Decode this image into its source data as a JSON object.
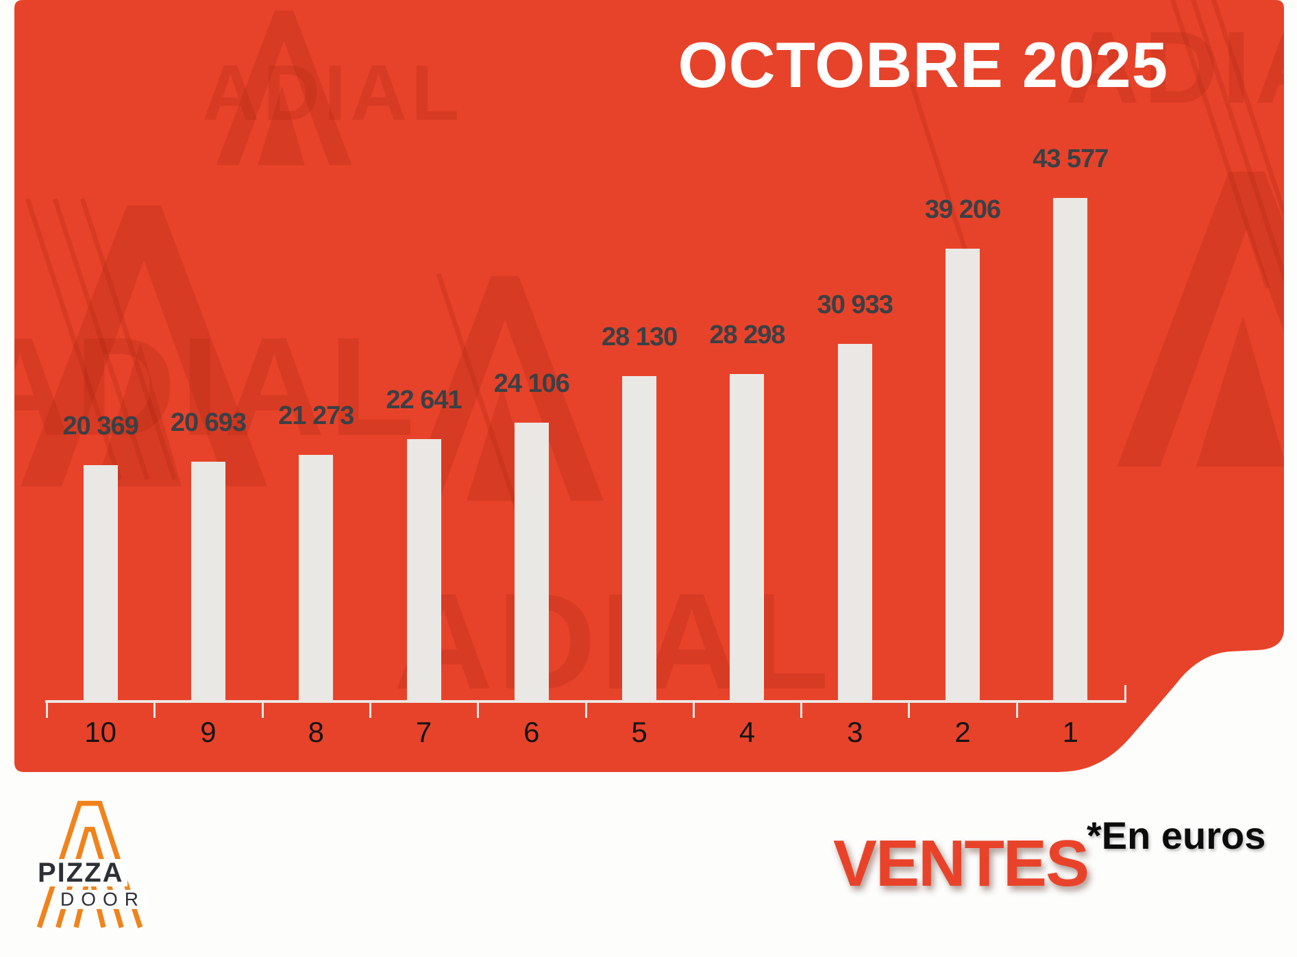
{
  "header": {
    "title": "OCTOBRE 2025"
  },
  "chart_data": {
    "type": "bar",
    "title": "OCTOBRE 2025",
    "categories": [
      "10",
      "9",
      "8",
      "7",
      "6",
      "5",
      "4",
      "3",
      "2",
      "1"
    ],
    "values": [
      20369,
      20693,
      21273,
      22641,
      24106,
      28130,
      28298,
      30933,
      39206,
      43577
    ],
    "value_labels": [
      "20 369",
      "20 693",
      "21 273",
      "22 641",
      "24 106",
      "28 130",
      "28 298",
      "30 933",
      "39 206",
      "43 577"
    ],
    "xlabel": "",
    "ylabel": "",
    "unit": "euros",
    "ylim": [
      0,
      45000
    ],
    "grid": false,
    "legend": "none"
  },
  "footer": {
    "ventes_label": "VENTES",
    "unit_note": "*En euros",
    "logo": {
      "brand_top": "PIZZA",
      "brand_bottom": "DOOR"
    }
  },
  "watermark": {
    "text": "ADIAL"
  },
  "colors": {
    "background": "#e7432a",
    "watermark": "rgba(160,28,10,0.20)",
    "bar": "#eae8e5",
    "value_text": "#3b4045",
    "axis": "#ebe8e4",
    "category_text": "#141414",
    "title": "#ffffff",
    "ventes": "#e8432a",
    "note_text": "#0c0c0c",
    "logo_orange": "#f0831c",
    "brand_text": "#2d3035"
  }
}
